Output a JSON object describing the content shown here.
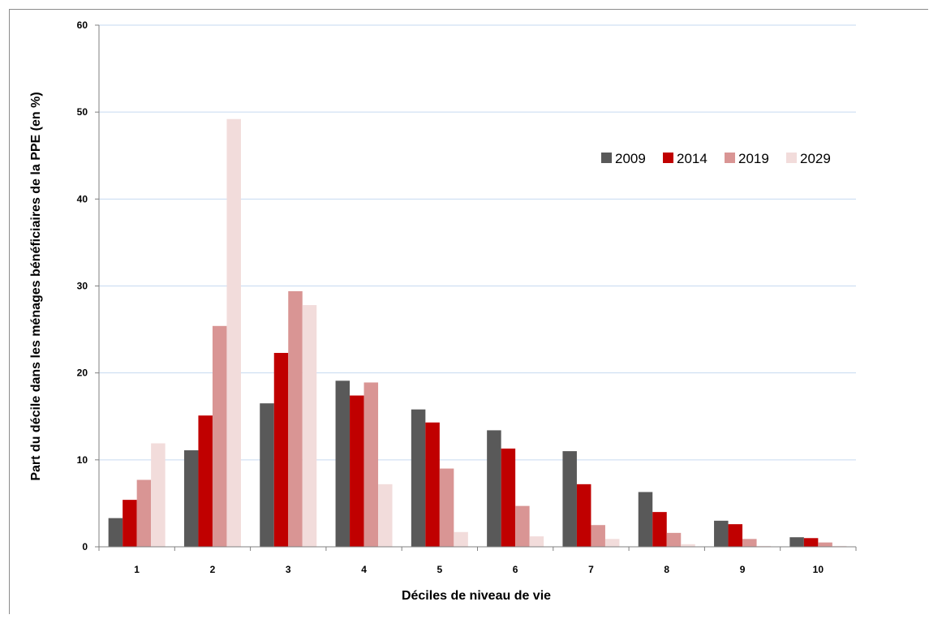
{
  "chart_data": {
    "type": "bar",
    "xlabel": "Déciles de niveau de vie",
    "ylabel": "Part du décile dans les ménages bénéficiaires de la PPE (en %)",
    "ylim": [
      0,
      60
    ],
    "yticks": [
      0,
      10,
      20,
      30,
      40,
      50,
      60
    ],
    "categories": [
      "1",
      "2",
      "3",
      "4",
      "5",
      "6",
      "7",
      "8",
      "9",
      "10"
    ],
    "grid": true,
    "legend_position": "top-right",
    "series": [
      {
        "name": "2009",
        "color": "#595959",
        "values": [
          3.3,
          11.1,
          16.5,
          19.1,
          15.8,
          13.4,
          11.0,
          6.3,
          3.0,
          1.1
        ]
      },
      {
        "name": "2014",
        "color": "#c00000",
        "values": [
          5.4,
          15.1,
          22.3,
          17.4,
          14.3,
          11.3,
          7.2,
          4.0,
          2.6,
          1.0
        ]
      },
      {
        "name": "2019",
        "color": "#d99594",
        "values": [
          7.7,
          25.4,
          29.4,
          18.9,
          9.0,
          4.7,
          2.5,
          1.6,
          0.9,
          0.5
        ]
      },
      {
        "name": "2029",
        "color": "#f2dcdb",
        "values": [
          11.9,
          49.2,
          27.8,
          7.2,
          1.7,
          1.2,
          0.9,
          0.3,
          0.1,
          0.1
        ]
      }
    ]
  }
}
